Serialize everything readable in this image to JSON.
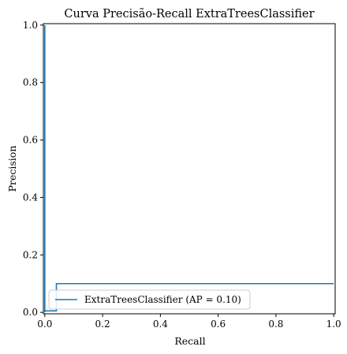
{
  "chart_data": {
    "type": "line",
    "title": "Curva Precisão-Recall ExtraTreesClassifier",
    "xlabel": "Recall",
    "ylabel": "Precision",
    "xlim": [
      -0.005,
      1.005
    ],
    "ylim": [
      -0.005,
      1.005
    ],
    "xticks": [
      "0.0",
      "0.2",
      "0.4",
      "0.6",
      "0.8",
      "1.0"
    ],
    "yticks": [
      "0.0",
      "0.2",
      "0.4",
      "0.6",
      "0.8",
      "1.0"
    ],
    "grid": false,
    "legend_position": "lower-left",
    "series": [
      {
        "name": "ExtraTreesClassifier (AP = 0.10)",
        "color": "#1f77b4",
        "drawstyle": "steps-post",
        "x": [
          0.0,
          0.0,
          0.0,
          0.0,
          0.04,
          0.04,
          1.0
        ],
        "y": [
          1.0,
          1.0,
          0.0,
          0.005,
          0.005,
          0.1,
          0.1
        ]
      }
    ]
  }
}
